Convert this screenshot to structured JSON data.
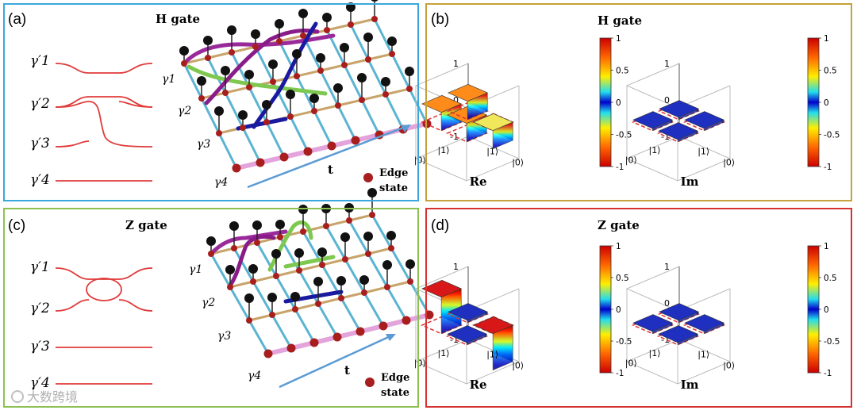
{
  "panels": {
    "a": {
      "label": "(a)",
      "title": "H gate"
    },
    "b": {
      "label": "(b)",
      "title": "H gate"
    },
    "c": {
      "label": "(c)",
      "title": "Z gate"
    },
    "d": {
      "label": "(d)",
      "title": "Z gate"
    }
  },
  "mode_labels": [
    "γ′1",
    "γ′2",
    "γ′3",
    "γ′4"
  ],
  "chain_labels": [
    "γ1",
    "γ2",
    "γ3",
    "γ4"
  ],
  "time_label": "t",
  "edge_state_label": [
    "Edge",
    "state"
  ],
  "bar_axes": {
    "z_ticks": [
      "1",
      "0",
      "-1"
    ],
    "basis_ticks": [
      "|0⟩",
      "|1⟩",
      "|1⟩",
      "|0⟩"
    ],
    "re_label": "Re",
    "im_label": "Im"
  },
  "colorbar_ticks": [
    "1",
    "0.5",
    "0",
    "-0.5",
    "-1"
  ],
  "chart_data": [
    {
      "type": "bar3d",
      "title": "H gate",
      "xlabel": "Re",
      "basis": [
        "|0⟩",
        "|1⟩"
      ],
      "values": [
        [
          0.5,
          0.5
        ],
        [
          0.5,
          -0.5
        ]
      ],
      "zlim": [
        -1,
        1
      ],
      "colormap": "jet"
    },
    {
      "type": "bar3d",
      "title": "H gate",
      "xlabel": "Im",
      "basis": [
        "|0⟩",
        "|1⟩"
      ],
      "values": [
        [
          0,
          0
        ],
        [
          0,
          0
        ]
      ],
      "zlim": [
        -1,
        1
      ],
      "colormap": "jet"
    },
    {
      "type": "bar3d",
      "title": "Z gate",
      "xlabel": "Re",
      "basis": [
        "|0⟩",
        "|1⟩"
      ],
      "values": [
        [
          1,
          0
        ],
        [
          0,
          -1
        ]
      ],
      "zlim": [
        -1,
        1
      ],
      "colormap": "jet"
    },
    {
      "type": "bar3d",
      "title": "Z gate",
      "xlabel": "Im",
      "basis": [
        "|0⟩",
        "|1⟩"
      ],
      "values": [
        [
          0,
          0
        ],
        [
          0,
          0
        ]
      ],
      "zlim": [
        -1,
        1
      ],
      "colormap": "jet"
    }
  ],
  "colors": {
    "panel_a": "#3aa8dc",
    "panel_b": "#c6a03a",
    "panel_c": "#8cc152",
    "panel_d": "#d63232",
    "braid_line": "#e03a3a",
    "rung": "#5ab4d2",
    "chain": "#c8a46a",
    "time_rail": "#e3a4dc",
    "edge_site": "#a81e1e",
    "arrow": "#5b9bd5"
  },
  "watermark": "大数跨境"
}
